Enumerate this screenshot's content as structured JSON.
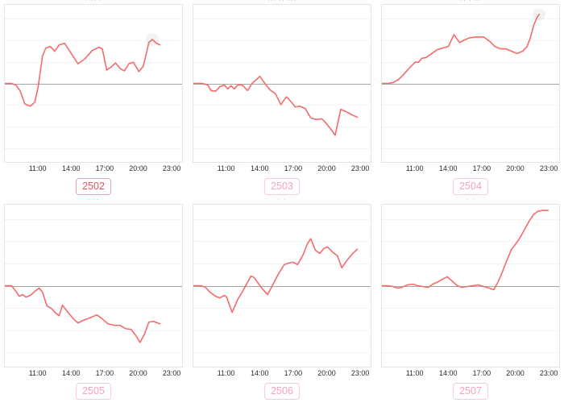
{
  "page": {
    "background": "#ffffff"
  },
  "colors": {
    "line": "#f56a6a",
    "zero_line": "#a6a6a6",
    "grid_line": "#ececec",
    "panel_border": "#e4e4e4",
    "tick_text": "#2b2b2b",
    "badge_text": "#f6a2bb",
    "badge_border": "#fbc9d7",
    "active_badge_text": "#e25164",
    "active_badge_border": "#f2a0b2"
  },
  "x_axis": {
    "ticks": [
      "11:00",
      "14:00",
      "17:00",
      "20:00",
      "23:00"
    ],
    "tick_positions_pct": [
      18.75,
      37.5,
      56.25,
      75,
      93.75
    ],
    "range_hours": [
      8,
      24
    ]
  },
  "grid_lines_pct": [
    8.75,
    22.5,
    36.25,
    63.75,
    77.5,
    91.25
  ],
  "chart_data": [
    {
      "id": "2502",
      "label": "2502",
      "type": "line",
      "active": true,
      "clipped_title": "· ·· ·",
      "xlabel": "",
      "ylabel": "",
      "ylim": [
        -1,
        1
      ],
      "baseline": 0,
      "x": [
        8,
        8.6,
        9.0,
        9.4,
        9.8,
        10.3,
        10.7,
        11.0,
        11.4,
        11.7,
        12.1,
        12.5,
        12.9,
        13.4,
        14.0,
        14.6,
        15.2,
        15.9,
        16.5,
        16.8,
        17.2,
        17.6,
        18.0,
        18.4,
        18.8,
        19.2,
        19.6,
        20.1,
        20.5,
        21.0,
        21.3,
        21.7,
        22.0
      ],
      "y": [
        0,
        0,
        -0.02,
        -0.1,
        -0.26,
        -0.29,
        -0.24,
        -0.05,
        0.35,
        0.45,
        0.47,
        0.41,
        0.49,
        0.51,
        0.38,
        0.25,
        0.31,
        0.42,
        0.46,
        0.44,
        0.17,
        0.21,
        0.26,
        0.19,
        0.16,
        0.25,
        0.27,
        0.15,
        0.22,
        0.52,
        0.56,
        0.51,
        0.49
      ],
      "end_marker": {
        "h": 21.3,
        "y": 0.56
      }
    },
    {
      "id": "2503",
      "label": "2503",
      "type": "line",
      "active": false,
      "clipped_title": "··· ·· ···",
      "xlabel": "",
      "ylabel": "",
      "ylim": [
        -1,
        1
      ],
      "baseline": 0,
      "x": [
        8,
        8.8,
        9.3,
        9.6,
        10.0,
        10.4,
        10.8,
        11.1,
        11.4,
        11.7,
        12.0,
        12.4,
        12.9,
        13.3,
        13.7,
        14.0,
        14.4,
        14.9,
        15.4,
        15.9,
        16.4,
        16.8,
        17.2,
        17.6,
        18.1,
        18.6,
        19.1,
        19.6,
        20.0,
        20.5,
        20.8,
        21.3,
        21.8,
        22.3,
        22.8
      ],
      "y": [
        0,
        0,
        -0.02,
        -0.09,
        -0.1,
        -0.04,
        -0.02,
        -0.07,
        -0.03,
        -0.07,
        -0.02,
        -0.02,
        -0.09,
        0.0,
        0.05,
        0.09,
        0.01,
        -0.08,
        -0.13,
        -0.27,
        -0.17,
        -0.23,
        -0.3,
        -0.29,
        -0.32,
        -0.44,
        -0.46,
        -0.45,
        -0.51,
        -0.6,
        -0.66,
        -0.33,
        -0.36,
        -0.4,
        -0.43
      ],
      "end_marker": null
    },
    {
      "id": "2504",
      "label": "2504",
      "type": "line",
      "active": false,
      "clipped_title": "·· · ··",
      "xlabel": "",
      "ylabel": "",
      "ylim": [
        -1,
        1
      ],
      "baseline": 0,
      "x": [
        8,
        8.5,
        9.0,
        9.5,
        10.0,
        10.5,
        11.0,
        11.3,
        11.6,
        12.0,
        12.5,
        13.0,
        13.5,
        14.0,
        14.5,
        15.0,
        15.4,
        15.9,
        16.5,
        17.2,
        17.7,
        18.2,
        18.7,
        19.2,
        19.7,
        20.2,
        20.7,
        21.1,
        21.4,
        21.7,
        22.0,
        22.2
      ],
      "y": [
        0,
        0,
        0.01,
        0.05,
        0.12,
        0.2,
        0.27,
        0.27,
        0.32,
        0.33,
        0.38,
        0.43,
        0.45,
        0.47,
        0.62,
        0.52,
        0.55,
        0.58,
        0.59,
        0.59,
        0.54,
        0.47,
        0.44,
        0.44,
        0.41,
        0.38,
        0.41,
        0.47,
        0.58,
        0.74,
        0.84,
        0.88
      ],
      "end_marker": {
        "h": 22.2,
        "y": 0.88
      }
    },
    {
      "id": "2505",
      "label": "2505",
      "type": "line",
      "active": false,
      "clipped_title": "· ··",
      "xlabel": "",
      "ylabel": "",
      "ylim": [
        -1,
        1
      ],
      "baseline": 0,
      "x": [
        8,
        8.6,
        8.9,
        9.3,
        9.6,
        9.9,
        10.3,
        10.7,
        11.1,
        11.4,
        11.8,
        12.2,
        12.6,
        12.9,
        13.2,
        13.7,
        14.2,
        14.6,
        15.2,
        15.8,
        16.3,
        16.8,
        17.3,
        17.9,
        18.4,
        18.9,
        19.4,
        19.9,
        20.2,
        20.6,
        21.0,
        21.4,
        22.0
      ],
      "y": [
        0,
        0,
        -0.05,
        -0.13,
        -0.11,
        -0.14,
        -0.12,
        -0.07,
        -0.03,
        -0.08,
        -0.25,
        -0.28,
        -0.34,
        -0.37,
        -0.24,
        -0.33,
        -0.41,
        -0.46,
        -0.42,
        -0.39,
        -0.36,
        -0.41,
        -0.47,
        -0.49,
        -0.49,
        -0.53,
        -0.54,
        -0.63,
        -0.7,
        -0.6,
        -0.45,
        -0.44,
        -0.47
      ],
      "end_marker": null
    },
    {
      "id": "2506",
      "label": "2506",
      "type": "line",
      "active": false,
      "clipped_title": "· ·",
      "xlabel": "",
      "ylabel": "",
      "ylim": [
        -1,
        1
      ],
      "baseline": 0,
      "x": [
        8,
        8.7,
        9.1,
        9.5,
        10.0,
        10.4,
        10.8,
        11.0,
        11.5,
        12.0,
        12.4,
        12.8,
        13.2,
        13.5,
        13.9,
        14.3,
        14.7,
        15.2,
        15.7,
        16.2,
        16.6,
        17.0,
        17.4,
        17.9,
        18.3,
        18.6,
        19.0,
        19.4,
        19.8,
        20.1,
        20.6,
        21.0,
        21.4,
        21.9,
        22.4,
        22.8
      ],
      "y": [
        0,
        0,
        -0.02,
        -0.08,
        -0.13,
        -0.15,
        -0.12,
        -0.14,
        -0.33,
        -0.17,
        -0.08,
        0.02,
        0.12,
        0.1,
        0.02,
        -0.05,
        -0.11,
        0.02,
        0.15,
        0.26,
        0.28,
        0.29,
        0.26,
        0.38,
        0.52,
        0.58,
        0.44,
        0.4,
        0.46,
        0.48,
        0.41,
        0.37,
        0.22,
        0.32,
        0.4,
        0.45
      ],
      "end_marker": null
    },
    {
      "id": "2507",
      "label": "2507",
      "type": "line",
      "active": false,
      "clipped_title": "· ·",
      "xlabel": "",
      "ylabel": "",
      "ylim": [
        -1,
        1
      ],
      "baseline": 0,
      "x": [
        8,
        8.5,
        9.0,
        9.4,
        9.8,
        10.3,
        10.8,
        11.2,
        11.7,
        12.2,
        12.6,
        13.1,
        13.6,
        13.9,
        14.4,
        14.8,
        15.2,
        15.7,
        16.2,
        16.7,
        17.2,
        17.7,
        18.1,
        18.5,
        18.9,
        19.3,
        19.7,
        20.1,
        20.5,
        20.9,
        21.3,
        21.7,
        22.1,
        22.5,
        23.0
      ],
      "y": [
        0,
        0,
        -0.01,
        -0.03,
        -0.02,
        0.01,
        0.02,
        0.0,
        -0.01,
        -0.02,
        0.02,
        0.05,
        0.09,
        0.11,
        0.05,
        0.0,
        -0.02,
        -0.01,
        0.0,
        0.01,
        -0.01,
        -0.03,
        -0.05,
        0.05,
        0.18,
        0.32,
        0.45,
        0.52,
        0.6,
        0.7,
        0.8,
        0.88,
        0.92,
        0.93,
        0.93
      ],
      "end_marker": null
    }
  ]
}
